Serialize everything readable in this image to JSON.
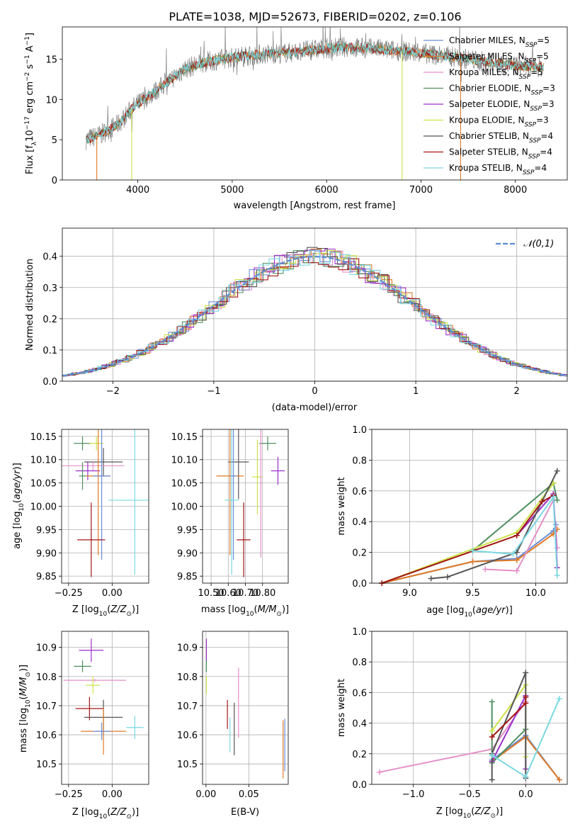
{
  "figure": {
    "title": "PLATE=1038, MJD=52673, FIBERID=0202, z=0.106"
  },
  "colors": {
    "Chabrier MILES": "#6a8fd8",
    "Salpeter MILES": "#e07a26",
    "Kroupa MILES": "#e48fc8",
    "Chabrier ELODIE": "#4f8f5f",
    "Salpeter ELODIE": "#9b2fc9",
    "Kroupa ELODIE": "#cde24a",
    "Chabrier STELIB": "#555555",
    "Salpeter STELIB": "#a31515",
    "Kroupa STELIB": "#7ad8e0"
  },
  "chart_data": [
    {
      "id": "spectrum",
      "type": "line",
      "title": "PLATE=1038, MJD=52673, FIBERID=0202, z=0.106",
      "xlabel": "wavelength [Angstrom, rest frame]",
      "ylabel": "Flux [f_λ 10^-17 erg cm^-2 s^-1 A^-1]",
      "xlim": [
        3200,
        8550
      ],
      "ylim": [
        0,
        19
      ],
      "xticks": [
        4000,
        5000,
        6000,
        7000,
        8000
      ],
      "yticks": [
        0,
        5,
        10,
        15
      ],
      "grid": false,
      "legend_position": "upper right",
      "legend": [
        "Chabrier MILES, N_SSP=5",
        "Salpeter MILES, N_SSP=5",
        "Kroupa MILES, N_SSP=5",
        "Chabrier ELODIE, N_SSP=3",
        "Salpeter ELODIE, N_SSP=3",
        "Kroupa ELODIE, N_SSP=3",
        "Chabrier STELIB, N_SSP=4",
        "Salpeter STELIB, N_SSP=4",
        "Kroupa STELIB, N_SSP=4"
      ],
      "continuum": {
        "x": [
          3450,
          3600,
          3800,
          3950,
          4100,
          4300,
          4500,
          4700,
          5000,
          5300,
          5600,
          5900,
          6200,
          6500,
          6800,
          7100,
          7400,
          7700,
          8000,
          8300
        ],
        "y": [
          5.0,
          5.6,
          7.0,
          9.0,
          10.3,
          12.0,
          13.8,
          14.6,
          15.2,
          15.6,
          15.8,
          16.2,
          16.5,
          16.3,
          16.0,
          15.6,
          15.2,
          14.6,
          14.2,
          14.0
        ]
      },
      "dips": [
        {
          "x": 3565,
          "y": 0
        },
        {
          "x": 3935,
          "y": 0
        },
        {
          "x": 6800,
          "y": 0
        },
        {
          "x": 7420,
          "y": 0
        }
      ]
    },
    {
      "id": "residuals",
      "type": "histogram",
      "xlabel": "(data-model)/error",
      "ylabel": "Normed distribution",
      "xlim": [
        -2.5,
        2.5
      ],
      "ylim": [
        0,
        0.49
      ],
      "xticks": [
        -2,
        -1,
        0,
        1,
        2
      ],
      "yticks": [
        0.0,
        0.1,
        0.2,
        0.3,
        0.4
      ],
      "grid": true,
      "bin_width": 0.1,
      "reference_curve": {
        "label": "𝒩(0,1)",
        "mean": 0,
        "sigma": 1,
        "style": "dashed",
        "color": "#5b8bd6"
      },
      "legend_position": "upper right"
    },
    {
      "id": "age-vs-Z",
      "type": "errorbar",
      "xlabel": "Z [log10(Z/Z⊙)]",
      "ylabel": "age [log10(age/yr)]",
      "xlim": [
        -0.29,
        0.21
      ],
      "ylim": [
        9.835,
        10.165
      ],
      "xticks": [
        -0.25,
        0.0
      ],
      "yticks": [
        9.85,
        9.9,
        9.95,
        10.0,
        10.05,
        10.1,
        10.15
      ],
      "grid": true,
      "points": [
        {
          "series": "Chabrier ELODIE",
          "x": -0.17,
          "y": 10.135,
          "xerr": 0.05,
          "yerr": 0.015
        },
        {
          "series": "Kroupa ELODIE",
          "x": -0.09,
          "y": 10.135,
          "xerr": 0.04,
          "yerr": 0.015
        },
        {
          "series": "Chabrier STELIB",
          "x": -0.05,
          "y": 10.095,
          "xerr": 0.11,
          "yerr": 0.03
        },
        {
          "series": "Kroupa MILES",
          "x": -0.11,
          "y": 10.087,
          "xerr": 0.18,
          "yerr": 0.01
        },
        {
          "series": "Salpeter ELODIE",
          "x": -0.14,
          "y": 10.076,
          "xerr": 0.07,
          "yerr": 0.02
        },
        {
          "series": "Chabrier ELODIE",
          "x": -0.17,
          "y": 10.065,
          "xerr": 0.02,
          "yerr": 0.03
        },
        {
          "series": "Salpeter MILES",
          "x": -0.08,
          "y": 10.065,
          "xerr": 0.07,
          "yerr": 0.17
        },
        {
          "series": "Chabrier MILES",
          "x": -0.06,
          "y": 10.065,
          "xerr": 0.05,
          "yerr": 0.18
        },
        {
          "series": "Kroupa STELIB",
          "x": 0.13,
          "y": 10.013,
          "xerr": 0.15,
          "yerr": 0.16
        },
        {
          "series": "Salpeter STELIB",
          "x": -0.12,
          "y": 9.928,
          "xerr": 0.08,
          "yerr": 0.08
        }
      ]
    },
    {
      "id": "age-vs-mass",
      "type": "errorbar",
      "xlabel": "mass [log10(M/M⊙)]",
      "ylabel": "",
      "xlim": [
        10.45,
        10.95
      ],
      "ylim": [
        9.835,
        10.165
      ],
      "xticks": [
        10.5,
        10.6,
        10.7,
        10.8
      ],
      "yticks": [
        9.85,
        9.9,
        9.95,
        10.0,
        10.05,
        10.1,
        10.15
      ],
      "grid": true,
      "points": [
        {
          "series": "Chabrier ELODIE",
          "x": 10.83,
          "y": 10.135,
          "xerr": 0.05,
          "yerr": 0.015
        },
        {
          "series": "Salpeter ELODIE",
          "x": 10.89,
          "y": 10.076,
          "xerr": 0.04,
          "yerr": 0.03
        },
        {
          "series": "Kroupa ELODIE",
          "x": 10.77,
          "y": 10.063,
          "xerr": 0.03,
          "yerr": 0.08
        },
        {
          "series": "Chabrier STELIB",
          "x": 10.66,
          "y": 10.095,
          "xerr": 0.06,
          "yerr": 0.08
        },
        {
          "series": "Salpeter MILES",
          "x": 10.61,
          "y": 10.065,
          "xerr": 0.08,
          "yerr": 0.17
        },
        {
          "series": "Kroupa MILES",
          "x": 10.79,
          "y": 10.05,
          "xerr": 0.005,
          "yerr": 0.16
        },
        {
          "series": "Chabrier MILES",
          "x": 10.63,
          "y": 10.065,
          "xerr": 0.02,
          "yerr": 0.18
        },
        {
          "series": "Kroupa STELIB",
          "x": 10.62,
          "y": 10.013,
          "xerr": 0.04,
          "yerr": 0.16
        },
        {
          "series": "Salpeter STELIB",
          "x": 10.69,
          "y": 9.928,
          "xerr": 0.04,
          "yerr": 0.08
        }
      ]
    },
    {
      "id": "mass-weight-vs-age",
      "type": "line",
      "xlabel": "age [log10(age/yr)]",
      "ylabel": "mass weight",
      "xlim": [
        8.7,
        10.25
      ],
      "ylim": [
        0,
        1
      ],
      "xticks": [
        9.0,
        9.5,
        10.0
      ],
      "yticks": [
        0.0,
        0.2,
        0.4,
        0.6,
        0.8,
        1.0
      ],
      "grid": true,
      "series": [
        {
          "name": "Chabrier MILES",
          "x": [
            8.78,
            9.5,
            9.85,
            10.14,
            10.16
          ],
          "y": [
            0.0,
            0.14,
            0.16,
            0.34,
            0.38
          ]
        },
        {
          "name": "Salpeter MILES",
          "x": [
            8.78,
            9.5,
            9.85,
            10.14,
            10.17
          ],
          "y": [
            0.0,
            0.14,
            0.15,
            0.32,
            0.35
          ]
        },
        {
          "name": "Kroupa MILES",
          "x": [
            9.6,
            9.85,
            10.14,
            10.17
          ],
          "y": [
            0.09,
            0.08,
            0.54,
            0.23
          ]
        },
        {
          "name": "Chabrier ELODIE",
          "x": [
            9.5,
            10.14,
            10.17
          ],
          "y": [
            0.21,
            0.65,
            0.54
          ]
        },
        {
          "name": "Salpeter ELODIE",
          "x": [
            9.85,
            10.14,
            10.17
          ],
          "y": [
            0.31,
            0.58,
            0.1
          ]
        },
        {
          "name": "Kroupa ELODIE",
          "x": [
            8.78,
            9.85,
            10.14
          ],
          "y": [
            0.0,
            0.33,
            0.65
          ]
        },
        {
          "name": "Chabrier STELIB",
          "x": [
            9.17,
            9.3,
            9.85,
            10.17
          ],
          "y": [
            0.03,
            0.04,
            0.2,
            0.73
          ]
        },
        {
          "name": "Salpeter STELIB",
          "x": [
            8.78,
            9.85,
            10.05,
            10.14
          ],
          "y": [
            0.0,
            0.31,
            0.53,
            0.57
          ]
        },
        {
          "name": "Kroupa STELIB",
          "x": [
            9.5,
            9.82,
            10.14,
            10.17
          ],
          "y": [
            0.21,
            0.19,
            0.56,
            0.05
          ]
        }
      ]
    },
    {
      "id": "mass-vs-Z",
      "type": "errorbar",
      "xlabel": "Z [log10(Z/Z⊙)]",
      "ylabel": "mass [log10(M/M⊙)]",
      "xlim": [
        -0.29,
        0.21
      ],
      "ylim": [
        10.43,
        10.955
      ],
      "xticks": [
        -0.25,
        0.0
      ],
      "yticks": [
        10.5,
        10.6,
        10.7,
        10.8,
        10.9
      ],
      "grid": true,
      "points": [
        {
          "series": "Salpeter ELODIE",
          "x": -0.12,
          "y": 10.89,
          "xerr": 0.07,
          "yerr": 0.04
        },
        {
          "series": "Chabrier ELODIE",
          "x": -0.17,
          "y": 10.835,
          "xerr": 0.05,
          "yerr": 0.02
        },
        {
          "series": "Kroupa MILES",
          "x": -0.1,
          "y": 10.787,
          "xerr": 0.18,
          "yerr": 0.005
        },
        {
          "series": "Kroupa ELODIE",
          "x": -0.11,
          "y": 10.77,
          "xerr": 0.04,
          "yerr": 0.03
        },
        {
          "series": "Salpeter STELIB",
          "x": -0.13,
          "y": 10.69,
          "xerr": 0.08,
          "yerr": 0.04
        },
        {
          "series": "Chabrier STELIB",
          "x": -0.05,
          "y": 10.66,
          "xerr": 0.11,
          "yerr": 0.06
        },
        {
          "series": "Kroupa STELIB",
          "x": 0.13,
          "y": 10.625,
          "xerr": 0.05,
          "yerr": 0.04
        },
        {
          "series": "Salpeter MILES",
          "x": -0.05,
          "y": 10.612,
          "xerr": 0.13,
          "yerr": 0.08
        },
        {
          "series": "Chabrier MILES",
          "x": -0.06,
          "y": 10.612,
          "xerr": 0.05,
          "yerr": 0.03
        }
      ]
    },
    {
      "id": "mass-vs-ebv",
      "type": "errorbar",
      "xlabel": "E(B-V)",
      "ylabel": "",
      "xlim": [
        -0.004,
        0.096
      ],
      "ylim": [
        10.43,
        10.955
      ],
      "xticks": [
        0.0,
        0.05
      ],
      "yticks": [
        10.5,
        10.6,
        10.7,
        10.8,
        10.9
      ],
      "grid": true,
      "points": [
        {
          "series": "Salpeter ELODIE",
          "x": 0.0005,
          "y": 10.89,
          "xerr": 0.0,
          "yerr": 0.04
        },
        {
          "series": "Chabrier ELODIE",
          "x": 0.0005,
          "y": 10.835,
          "xerr": 0.0,
          "yerr": 0.02
        },
        {
          "series": "Kroupa ELODIE",
          "x": 0.0005,
          "y": 10.77,
          "xerr": 0.0,
          "yerr": 0.03
        },
        {
          "series": "Salpeter STELIB",
          "x": 0.025,
          "y": 10.67,
          "xerr": 0.0,
          "yerr": 0.05
        },
        {
          "series": "Kroupa STELIB",
          "x": 0.028,
          "y": 10.6,
          "xerr": 0.0,
          "yerr": 0.06
        },
        {
          "series": "Chabrier STELIB",
          "x": 0.033,
          "y": 10.62,
          "xerr": 0.0,
          "yerr": 0.09
        },
        {
          "series": "Kroupa MILES",
          "x": 0.038,
          "y": 10.71,
          "xerr": 0.0,
          "yerr": 0.12
        },
        {
          "series": "Salpeter MILES",
          "x": 0.09,
          "y": 10.55,
          "xerr": 0.0,
          "yerr": 0.1
        },
        {
          "series": "Chabrier MILES",
          "x": 0.092,
          "y": 10.565,
          "xerr": 0.0,
          "yerr": 0.09
        }
      ]
    },
    {
      "id": "mass-weight-vs-Z",
      "type": "line",
      "xlabel": "Z [log10(Z/Z⊙)]",
      "ylabel": "mass weight",
      "xlim": [
        -1.37,
        0.37
      ],
      "ylim": [
        0,
        1
      ],
      "xticks": [
        -1.0,
        -0.5,
        0.0
      ],
      "yticks": [
        0.0,
        0.2,
        0.4,
        0.6,
        0.8,
        1.0
      ],
      "grid": true,
      "series": [
        {
          "name": "Chabrier MILES",
          "x": [
            -0.3,
            0.0,
            0.3
          ],
          "y": [
            0.16,
            0.32,
            0.03
          ]
        },
        {
          "name": "Salpeter MILES",
          "x": [
            -0.3,
            0.0,
            0.3
          ],
          "y": [
            0.15,
            0.31,
            0.03
          ]
        },
        {
          "name": "Kroupa MILES",
          "x": [
            -1.3,
            -0.3,
            0.0
          ],
          "y": [
            0.08,
            0.23,
            0.54
          ]
        },
        {
          "name": "Chabrier ELODIE",
          "x": [
            -0.3,
            -0.3,
            0.0
          ],
          "y": [
            0.54,
            0.14,
            0.36
          ]
        },
        {
          "name": "Salpeter ELODIE",
          "x": [
            -0.3,
            0.0,
            0.0
          ],
          "y": [
            0.15,
            0.58,
            0.1
          ]
        },
        {
          "name": "Kroupa ELODIE",
          "x": [
            -0.3,
            0.0,
            0.0
          ],
          "y": [
            0.35,
            0.65,
            0.18
          ]
        },
        {
          "name": "Chabrier STELIB",
          "x": [
            -0.3,
            -0.3,
            0.0,
            0.0
          ],
          "y": [
            0.03,
            0.2,
            0.73,
            0.04
          ]
        },
        {
          "name": "Salpeter STELIB",
          "x": [
            -0.3,
            0.0,
            0.0
          ],
          "y": [
            0.31,
            0.53,
            0.57
          ]
        },
        {
          "name": "Kroupa STELIB",
          "x": [
            -0.3,
            0.0,
            0.3
          ],
          "y": [
            0.19,
            0.05,
            0.56
          ]
        }
      ]
    }
  ]
}
